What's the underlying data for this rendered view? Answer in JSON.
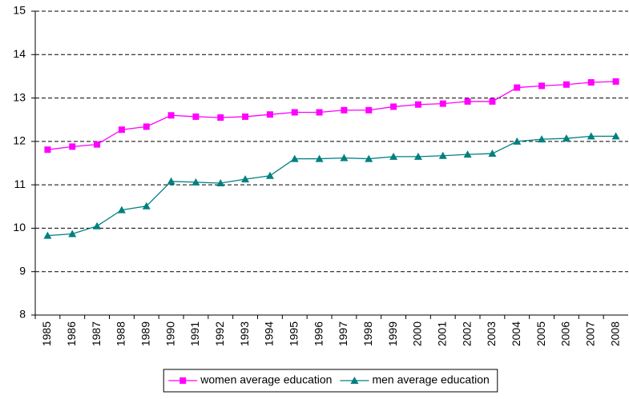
{
  "chart_data": {
    "type": "line",
    "categories": [
      "1985",
      "1986",
      "1987",
      "1988",
      "1989",
      "1990",
      "1991",
      "1992",
      "1993",
      "1994",
      "1995",
      "1996",
      "1997",
      "1998",
      "1999",
      "2000",
      "2001",
      "2002",
      "2003",
      "2004",
      "2005",
      "2006",
      "2007",
      "2008"
    ],
    "series": [
      {
        "name": "women average education",
        "color": "#ff00ff",
        "marker": "square",
        "values": [
          11.81,
          11.88,
          11.93,
          12.27,
          12.34,
          12.6,
          12.57,
          12.55,
          12.57,
          12.62,
          12.67,
          12.67,
          12.72,
          12.72,
          12.8,
          12.85,
          12.87,
          12.92,
          12.92,
          13.24,
          13.28,
          13.31,
          13.36,
          13.38
        ]
      },
      {
        "name": "men average education",
        "color": "#008080",
        "marker": "triangle",
        "values": [
          9.83,
          9.87,
          10.05,
          10.42,
          10.51,
          11.08,
          11.06,
          11.04,
          11.13,
          11.21,
          11.6,
          11.6,
          11.62,
          11.6,
          11.65,
          11.65,
          11.67,
          11.7,
          11.72,
          12.0,
          12.05,
          12.07,
          12.12,
          12.12
        ]
      }
    ],
    "ylim": [
      8,
      15
    ],
    "yticks": [
      8,
      9,
      10,
      11,
      12,
      13,
      14,
      15
    ],
    "grid": true,
    "legend": "bottom"
  }
}
